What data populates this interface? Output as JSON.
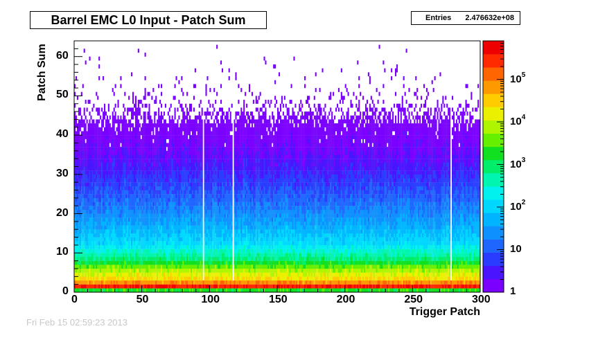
{
  "chart_data": {
    "type": "heatmap",
    "title": "Barrel EMC L0 Input - Patch Sum",
    "xlabel": "Trigger Patch",
    "ylabel": "Patch Sum",
    "xlim": [
      0,
      300
    ],
    "ylim": [
      0,
      64
    ],
    "x_ticks": [
      "0",
      "50",
      "100",
      "150",
      "200",
      "250",
      "300"
    ],
    "y_ticks": [
      "0",
      "10",
      "20",
      "30",
      "40",
      "50",
      "60"
    ],
    "z_scale": "log",
    "zlim": [
      1,
      800000
    ],
    "z_ticks": [
      {
        "base": "1",
        "exp": ""
      },
      {
        "base": "10",
        "exp": ""
      },
      {
        "base": "10",
        "exp": "2"
      },
      {
        "base": "10",
        "exp": "3"
      },
      {
        "base": "10",
        "exp": "4"
      },
      {
        "base": "10",
        "exp": "5"
      }
    ],
    "grid": false,
    "stats": {
      "label": "Entries",
      "value": "2.476632e+08"
    },
    "bins": {
      "nx": 300,
      "ny": 64
    },
    "z_profile_by_patch_sum": [
      {
        "y": 0,
        "z": 2000
      },
      {
        "y": 1,
        "z": 400000
      },
      {
        "y": 2,
        "z": 80000
      },
      {
        "y": 3,
        "z": 25000
      },
      {
        "y": 5,
        "z": 8000
      },
      {
        "y": 8,
        "z": 800
      },
      {
        "y": 12,
        "z": 120
      },
      {
        "y": 16,
        "z": 50
      },
      {
        "y": 20,
        "z": 22
      },
      {
        "y": 25,
        "z": 9
      },
      {
        "y": 30,
        "z": 4
      },
      {
        "y": 35,
        "z": 2
      },
      {
        "y": 42,
        "z": 1
      }
    ],
    "dead_patches": [
      95,
      117,
      278
    ],
    "colors": {
      "palette": [
        "#7a00ff",
        "#4a14ff",
        "#2a3cff",
        "#1f66ff",
        "#0f90ff",
        "#00b4ff",
        "#00d7ff",
        "#00f0ee",
        "#00f5b0",
        "#00ee6a",
        "#10e020",
        "#66f000",
        "#b0f500",
        "#eaf000",
        "#ffcc00",
        "#ff9900",
        "#ff6600",
        "#ff2a00",
        "#ee0000"
      ]
    }
  },
  "footer": {
    "text": "Fri Feb 15 02:59:23 2013"
  }
}
